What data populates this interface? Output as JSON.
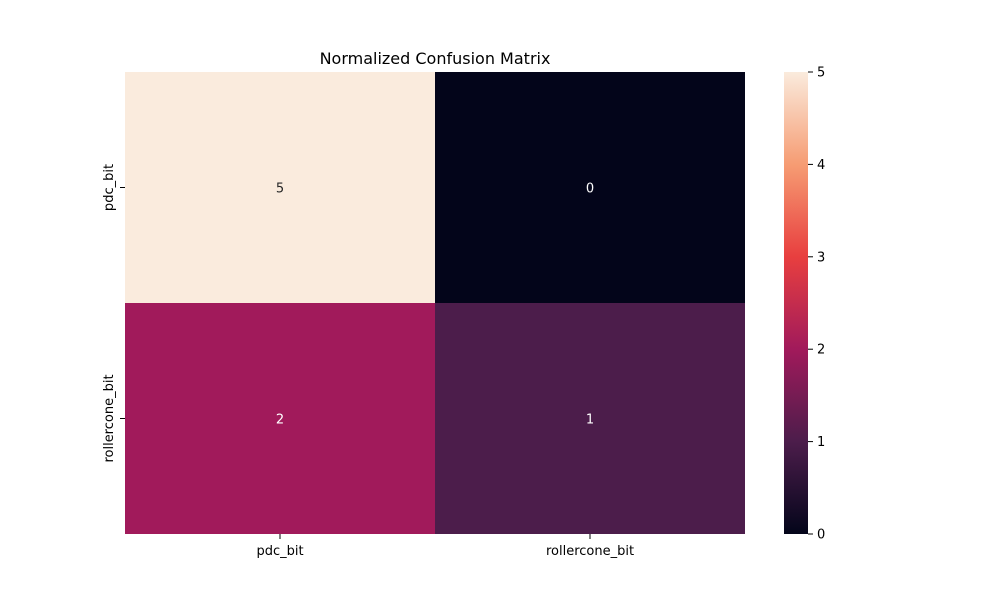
{
  "chart_data": {
    "type": "heatmap",
    "title": "Normalized Confusion Matrix",
    "xlabel": "",
    "ylabel": "",
    "x_categories": [
      "pdc_bit",
      "rollercone_bit"
    ],
    "y_categories": [
      "pdc_bit",
      "rollercone_bit"
    ],
    "values": [
      [
        5,
        0
      ],
      [
        2,
        1
      ]
    ],
    "annotations": [
      [
        "5",
        "0"
      ],
      [
        "2",
        "1"
      ]
    ],
    "colormap": "rocket",
    "colorbar": {
      "range": [
        0,
        5
      ],
      "ticks": [
        "0",
        "1",
        "2",
        "3",
        "4",
        "5"
      ],
      "stops": [
        "#03051a",
        "#4c1d4b",
        "#a11a5b",
        "#e83f3f",
        "#f69c73",
        "#faebdd"
      ]
    },
    "cell_colors": [
      [
        "#faebdd",
        "#03051a"
      ],
      [
        "#a11a5b",
        "#4c1d4b"
      ]
    ],
    "annotation_colors": [
      [
        "#262626",
        "#ffffff"
      ],
      [
        "#ffffff",
        "#ffffff"
      ]
    ],
    "grid": false
  }
}
